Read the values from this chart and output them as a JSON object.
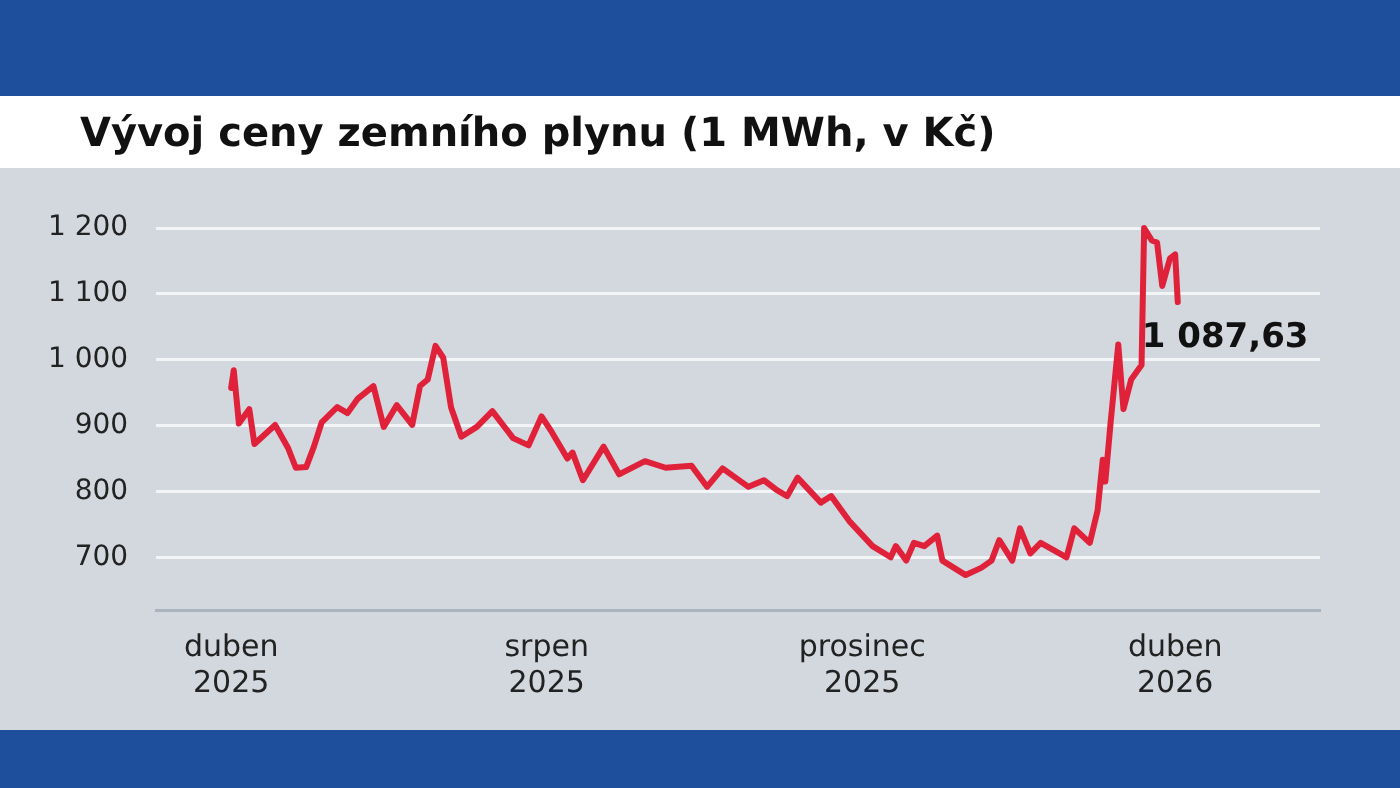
{
  "chart_data": {
    "type": "line",
    "title": "Vývoj ceny zemního plynu (1 MWh, v Kč)",
    "x": [
      "2025-04-01",
      "2025-04-02",
      "2025-04-04",
      "2025-04-08",
      "2025-04-10",
      "2025-04-18",
      "2025-04-23",
      "2025-04-26",
      "2025-04-30",
      "2025-05-03",
      "2025-05-06",
      "2025-05-12",
      "2025-05-16",
      "2025-05-20",
      "2025-05-26",
      "2025-05-30",
      "2025-06-04",
      "2025-06-10",
      "2025-06-13",
      "2025-06-16",
      "2025-06-19",
      "2025-06-22",
      "2025-06-25",
      "2025-06-29",
      "2025-07-05",
      "2025-07-11",
      "2025-07-19",
      "2025-07-25",
      "2025-07-30",
      "2025-08-03",
      "2025-08-09",
      "2025-08-11",
      "2025-08-15",
      "2025-08-23",
      "2025-08-29",
      "2025-09-08",
      "2025-09-16",
      "2025-09-26",
      "2025-10-02",
      "2025-10-08",
      "2025-10-18",
      "2025-10-24",
      "2025-10-29",
      "2025-11-02",
      "2025-11-06",
      "2025-11-15",
      "2025-11-19",
      "2025-11-26",
      "2025-12-05",
      "2025-12-12",
      "2025-12-14",
      "2025-12-18",
      "2025-12-21",
      "2025-12-25",
      "2025-12-30",
      "2026-01-01",
      "2026-01-10",
      "2026-01-16",
      "2026-01-20",
      "2026-01-23",
      "2026-01-28",
      "2026-01-31",
      "2026-02-04",
      "2026-02-08",
      "2026-02-13",
      "2026-02-18",
      "2026-02-21",
      "2026-02-27",
      "2026-03-02",
      "2026-03-04",
      "2026-03-05",
      "2026-03-07",
      "2026-03-10",
      "2026-03-12",
      "2026-03-15",
      "2026-03-19",
      "2026-03-20",
      "2026-03-23",
      "2026-03-25",
      "2026-03-27",
      "2026-03-30",
      "2026-04-01",
      "2026-04-02"
    ],
    "series": [
      {
        "color": "#e0213a",
        "values": [
          957,
          984,
          903,
          925,
          872,
          901,
          866,
          836,
          837,
          868,
          905,
          928,
          919,
          941,
          960,
          898,
          931,
          901,
          960,
          970,
          1021,
          1003,
          928,
          883,
          898,
          922,
          881,
          870,
          914,
          890,
          850,
          859,
          817,
          868,
          826,
          846,
          836,
          839,
          807,
          835,
          807,
          817,
          802,
          793,
          821,
          783,
          793,
          755,
          717,
          700,
          717,
          695,
          722,
          717,
          733,
          695,
          673,
          684,
          695,
          726,
          695,
          744,
          706,
          722,
          711,
          700,
          744,
          722,
          771,
          848,
          815,
          903,
          1023,
          925,
          970,
          992,
          1200,
          1181,
          1178,
          1112,
          1154,
          1160,
          1087.63
        ]
      }
    ],
    "xlim": [
      "2025-03-03",
      "2026-05-27"
    ],
    "xticks": [
      {
        "value": "2025-04-01",
        "label": "duben 2025"
      },
      {
        "value": "2025-08-01",
        "label": "srpen 2025"
      },
      {
        "value": "2025-12-01",
        "label": "prosinec 2025"
      },
      {
        "value": "2026-04-01",
        "label": "duben 2026"
      }
    ],
    "ylim": [
      620,
      1200
    ],
    "yticks": [
      700,
      800,
      900,
      {
        "value": 1000,
        "label": "1 000"
      },
      {
        "value": 1100,
        "label": "1 100"
      },
      {
        "value": 1200,
        "label": "1 200"
      }
    ],
    "grid": "y",
    "legend": false,
    "marker": "none",
    "line_style": "solid",
    "annotations": [
      {
        "text": "1 087,63",
        "x": "2026-04-02",
        "y": 1087.63
      }
    ]
  }
}
